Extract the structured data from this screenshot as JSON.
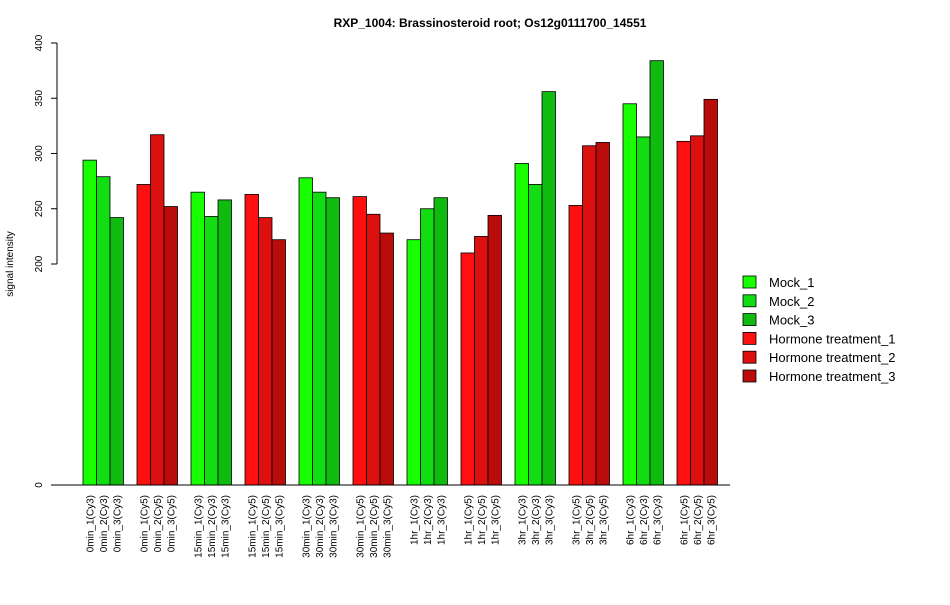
{
  "chart_data": {
    "type": "bar",
    "title": "RXP_1004: Brassinosteroid root; Os12g0111700_14551",
    "xlabel": "",
    "ylabel": "signal intensity",
    "ylim": [
      0,
      400
    ],
    "yticks": [
      0,
      200,
      250,
      300,
      350,
      400
    ],
    "y_axis_break": "linear 200-400 segment, compressed 0-200 segment",
    "grid": false,
    "legend_position": "right",
    "series": [
      {
        "name": "Mock_1",
        "color": "#17FF00"
      },
      {
        "name": "Mock_2",
        "color": "#12DD12"
      },
      {
        "name": "Mock_3",
        "color": "#10BB10"
      },
      {
        "name": "Hormone treatment_1",
        "color": "#FF1010"
      },
      {
        "name": "Hormone treatment_2",
        "color": "#DD1010"
      },
      {
        "name": "Hormone treatment_3",
        "color": "#BB0C0C"
      }
    ],
    "bars": [
      {
        "label": "0min_1(Cy3)",
        "value": 294,
        "series": 0
      },
      {
        "label": "0min_2(Cy3)",
        "value": 279,
        "series": 1
      },
      {
        "label": "0min_3(Cy3)",
        "value": 242,
        "series": 2
      },
      {
        "label": "0min_1(Cy5)",
        "value": 272,
        "series": 3
      },
      {
        "label": "0min_2(Cy5)",
        "value": 317,
        "series": 4
      },
      {
        "label": "0min_3(Cy5)",
        "value": 252,
        "series": 5
      },
      {
        "label": "15min_1(Cy3)",
        "value": 265,
        "series": 0
      },
      {
        "label": "15min_2(Cy3)",
        "value": 243,
        "series": 1
      },
      {
        "label": "15min_3(Cy3)",
        "value": 258,
        "series": 2
      },
      {
        "label": "15min_1(Cy5)",
        "value": 263,
        "series": 3
      },
      {
        "label": "15min_2(Cy5)",
        "value": 242,
        "series": 4
      },
      {
        "label": "15min_3(Cy5)",
        "value": 222,
        "series": 5
      },
      {
        "label": "30min_1(Cy3)",
        "value": 278,
        "series": 0
      },
      {
        "label": "30min_2(Cy3)",
        "value": 265,
        "series": 1
      },
      {
        "label": "30min_3(Cy3)",
        "value": 260,
        "series": 2
      },
      {
        "label": "30min_1(Cy5)",
        "value": 261,
        "series": 3
      },
      {
        "label": "30min_2(Cy5)",
        "value": 245,
        "series": 4
      },
      {
        "label": "30min_3(Cy5)",
        "value": 228,
        "series": 5
      },
      {
        "label": "1hr_1(Cy3)",
        "value": 222,
        "series": 0
      },
      {
        "label": "1hr_2(Cy3)",
        "value": 250,
        "series": 1
      },
      {
        "label": "1hr_3(Cy3)",
        "value": 260,
        "series": 2
      },
      {
        "label": "1hr_1(Cy5)",
        "value": 210,
        "series": 3
      },
      {
        "label": "1hr_2(Cy5)",
        "value": 225,
        "series": 4
      },
      {
        "label": "1hr_3(Cy5)",
        "value": 244,
        "series": 5
      },
      {
        "label": "3hr_1(Cy3)",
        "value": 291,
        "series": 0
      },
      {
        "label": "3hr_2(Cy3)",
        "value": 272,
        "series": 1
      },
      {
        "label": "3hr_3(Cy3)",
        "value": 356,
        "series": 2
      },
      {
        "label": "3hr_1(Cy5)",
        "value": 253,
        "series": 3
      },
      {
        "label": "3hr_2(Cy5)",
        "value": 307,
        "series": 4
      },
      {
        "label": "3hr_3(Cy5)",
        "value": 310,
        "series": 5
      },
      {
        "label": "6hr_1(Cy3)",
        "value": 345,
        "series": 0
      },
      {
        "label": "6hr_2(Cy3)",
        "value": 315,
        "series": 1
      },
      {
        "label": "6hr_3(Cy3)",
        "value": 384,
        "series": 2
      },
      {
        "label": "6hr_1(Cy5)",
        "value": 311,
        "series": 3
      },
      {
        "label": "6hr_2(Cy5)",
        "value": 316,
        "series": 4
      },
      {
        "label": "6hr_3(Cy5)",
        "value": 349,
        "series": 5
      }
    ]
  }
}
